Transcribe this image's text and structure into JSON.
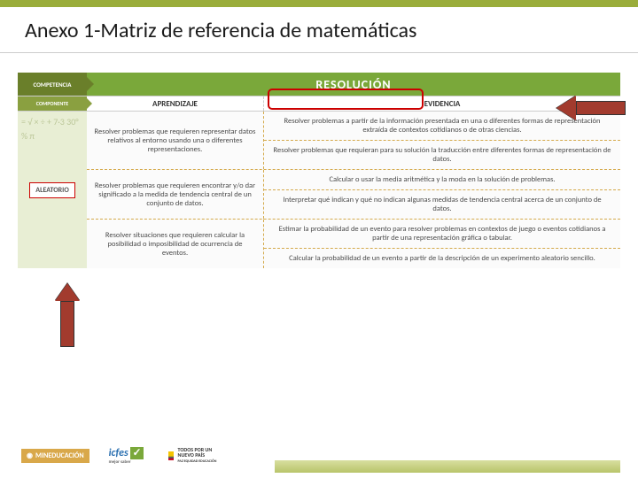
{
  "colors": {
    "band": "#9aad3b",
    "header_dark": "#6a7f2a",
    "header_light": "#7aa83a",
    "sidebar_bg": "#e8eed4",
    "arrow": "#a23b2e",
    "highlight_border": "#c00",
    "dash_border": "#d4a94a"
  },
  "title": "Anexo 1-Matriz de referencia de matemáticas",
  "header": {
    "competencia": "COMPETENCIA",
    "componente": "COMPONENTE",
    "resolucion": "RESOLUCIÓN",
    "aprendizaje": "APRENDIZAJE",
    "evidencia": "EVIDENCIA"
  },
  "sidebar": {
    "badge": "ALEATORIO",
    "math_decor": "= √ × ÷ + 7·3 30° % π"
  },
  "rows": [
    {
      "aprendizaje": "Resolver problemas que requieren representar datos relativos al entorno usando una o diferentes representaciones.",
      "evidencias": [
        "Resolver problemas a partir de la información presentada en una o diferentes formas de representación extraída de contextos cotidianos o de otras ciencias.",
        "Resolver problemas que requieran para su solución la traducción entre diferentes formas de representación de datos."
      ]
    },
    {
      "aprendizaje": "Resolver problemas que requieren encontrar y/o dar significado a la medida de tendencia central de un conjunto de datos.",
      "evidencias": [
        "Calcular o usar la media aritmética y la moda en la solución de problemas.",
        "Interpretar qué indican y qué no indican algunas medidas de tendencia central acerca de un conjunto de datos."
      ]
    },
    {
      "aprendizaje": "Resolver situaciones que requieren calcular la posibilidad o imposibilidad de ocurrencia de eventos.",
      "evidencias": [
        "Estimar la probabilidad de un evento para resolver problemas en contextos de juego o eventos cotidianos a partir de una representación gráfica o tabular.",
        "Calcular la probabilidad de un evento a partir de la descripción de un experimento aleatorio sencillo."
      ]
    }
  ],
  "footer": {
    "mineducacion": "MINEDUCACIÓN",
    "icfes": "icfes",
    "icfes_sub": "mejor saber",
    "icfes_check": "✓",
    "pais_line1": "TODOS POR UN",
    "pais_line2": "NUEVO PAÍS",
    "pais_line3": "PAZ EQUIDAD EDUCACIÓN"
  }
}
